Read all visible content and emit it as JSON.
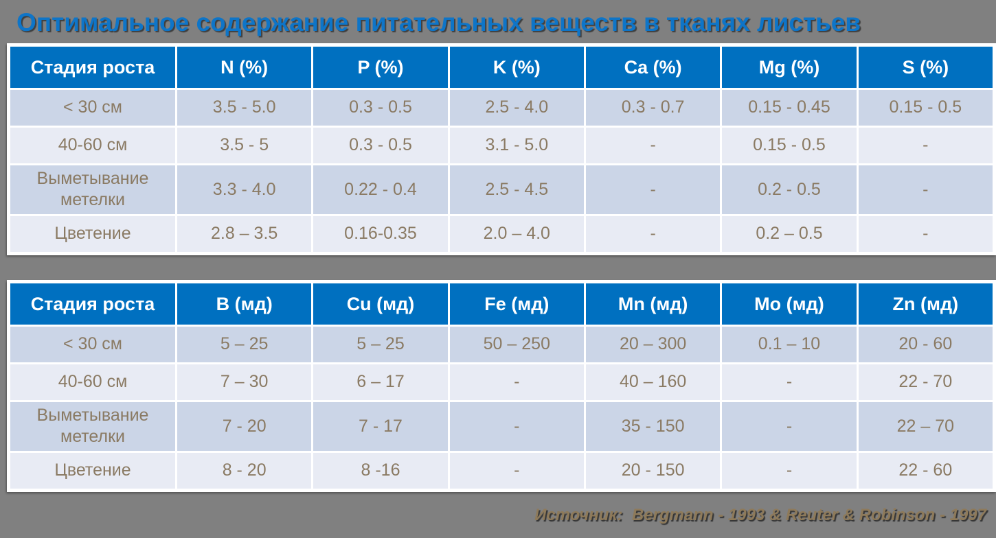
{
  "page": {
    "title": "Оптимальное содержание питательных веществ в тканях листьев",
    "source_label": "Источник:",
    "source_text": "Bergmann - 1993 & Reuter & Robinson - 1997"
  },
  "colors": {
    "background": "#808080",
    "header_bg": "#0070C0",
    "header_text": "#FFFFFF",
    "row_dark": "#CBD5E7",
    "row_light": "#E8EBF4",
    "cell_text": "#8A7A63",
    "title_text": "#0E75C8",
    "source_text": "#8E7A5A"
  },
  "tables": [
    {
      "name": "macronutrients-table",
      "columns": [
        "Стадия роста",
        "N (%)",
        "P (%)",
        "K (%)",
        "Ca (%)",
        "Mg (%)",
        "S (%)"
      ],
      "rows": [
        [
          "< 30 см",
          "3.5 - 5.0",
          "0.3 - 0.5",
          "2.5 - 4.0",
          "0.3 - 0.7",
          "0.15 - 0.45",
          "0.15 - 0.5"
        ],
        [
          "40-60 см",
          "3.5 - 5",
          "0.3 - 0.5",
          "3.1 - 5.0",
          "-",
          "0.15 - 0.5",
          "-"
        ],
        [
          "Выметывание метелки",
          "3.3 - 4.0",
          "0.22 - 0.4",
          "2.5 - 4.5",
          "-",
          "0.2 - 0.5",
          "-"
        ],
        [
          "Цветение",
          "2.8 – 3.5",
          "0.16-0.35",
          "2.0 – 4.0",
          "-",
          "0.2 – 0.5",
          "-"
        ]
      ]
    },
    {
      "name": "micronutrients-table",
      "columns": [
        "Стадия роста",
        "B (мд)",
        "Cu (мд)",
        "Fe (мд)",
        "Mn (мд)",
        "Mo (мд)",
        "Zn (мд)"
      ],
      "rows": [
        [
          "< 30 см",
          "5 – 25",
          "5 – 25",
          "50 – 250",
          "20 – 300",
          "0.1 – 10",
          "20 - 60"
        ],
        [
          "40-60 см",
          "7 – 30",
          "6 – 17",
          "-",
          "40 – 160",
          "-",
          "22 - 70"
        ],
        [
          "Выметывание метелки",
          "7 - 20",
          "7 - 17",
          "-",
          "35 - 150",
          "-",
          "22 – 70"
        ],
        [
          "Цветение",
          "8 - 20",
          "8 -16",
          "-",
          "20 - 150",
          "-",
          "22 - 60"
        ]
      ]
    }
  ]
}
